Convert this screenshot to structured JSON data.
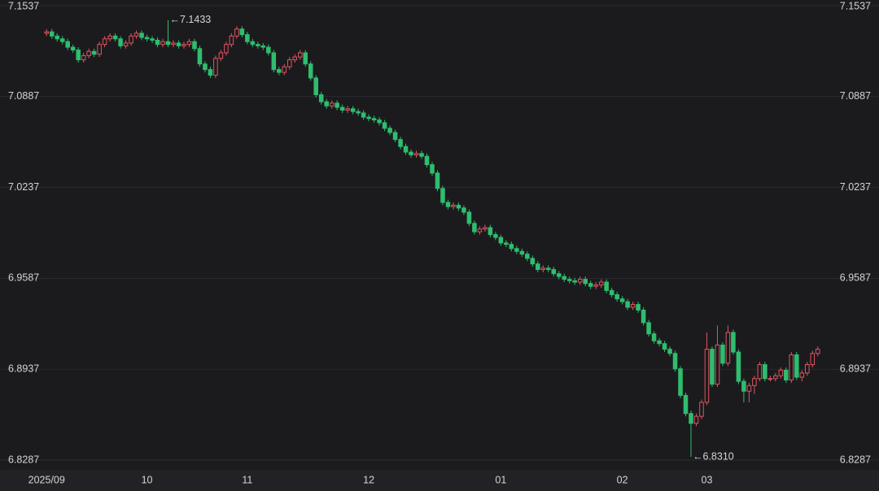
{
  "chart_data": {
    "type": "candlestick",
    "categories": [
      "2025/09",
      null,
      null,
      null,
      null,
      null,
      null,
      null,
      null,
      null,
      null,
      null,
      null,
      null,
      null,
      null,
      null,
      null,
      null,
      "10",
      null,
      null,
      null,
      null,
      null,
      null,
      null,
      null,
      null,
      null,
      null,
      null,
      null,
      null,
      null,
      null,
      null,
      null,
      "11",
      null,
      null,
      null,
      null,
      null,
      null,
      null,
      null,
      null,
      null,
      null,
      null,
      null,
      null,
      null,
      null,
      null,
      null,
      null,
      null,
      null,
      null,
      "12",
      null,
      null,
      null,
      null,
      null,
      null,
      null,
      null,
      null,
      null,
      null,
      null,
      null,
      null,
      null,
      null,
      null,
      null,
      null,
      null,
      null,
      null,
      null,
      null,
      "01",
      null,
      null,
      null,
      null,
      null,
      null,
      null,
      null,
      null,
      null,
      null,
      null,
      null,
      null,
      null,
      null,
      null,
      null,
      null,
      null,
      null,
      null,
      "02",
      null,
      null,
      null,
      null,
      null,
      null,
      null,
      null,
      null,
      null,
      null,
      null,
      null,
      null,
      null,
      "03",
      null,
      null,
      null,
      null,
      null,
      null,
      null,
      null,
      null,
      null,
      null,
      null,
      null,
      null,
      null,
      null,
      null,
      null,
      null,
      null,
      null
    ],
    "open": [
      7.134,
      7.135,
      7.132,
      7.13,
      7.128,
      7.124,
      7.122,
      7.115,
      7.118,
      7.121,
      7.119,
      7.126,
      7.13,
      7.132,
      7.13,
      7.125,
      7.127,
      7.132,
      7.134,
      7.131,
      7.13,
      7.129,
      7.126,
      7.128,
      7.126,
      7.127,
      7.125,
      7.126,
      7.128,
      7.123,
      7.112,
      7.108,
      7.104,
      7.116,
      7.12,
      7.126,
      7.132,
      7.137,
      7.133,
      7.128,
      7.126,
      7.125,
      7.124,
      7.12,
      7.108,
      7.106,
      7.11,
      7.115,
      7.117,
      7.12,
      7.112,
      7.102,
      7.09,
      7.085,
      7.082,
      7.084,
      7.081,
      7.079,
      7.08,
      7.078,
      7.077,
      7.074,
      7.073,
      7.072,
      7.07,
      7.066,
      7.063,
      7.058,
      7.053,
      7.049,
      7.047,
      7.048,
      7.046,
      7.04,
      7.034,
      7.023,
      7.013,
      7.01,
      7.011,
      7.009,
      7.006,
      6.998,
      6.992,
      6.994,
      6.995,
      6.99,
      6.988,
      6.984,
      6.983,
      6.98,
      6.978,
      6.976,
      6.973,
      6.969,
      6.965,
      6.966,
      6.965,
      6.962,
      6.96,
      6.958,
      6.957,
      6.956,
      6.958,
      6.955,
      6.953,
      6.954,
      6.956,
      6.95,
      6.947,
      6.944,
      6.942,
      6.938,
      6.94,
      6.936,
      6.927,
      6.919,
      6.914,
      6.912,
      6.908,
      6.905,
      6.894,
      6.875,
      6.862,
      6.855,
      6.86,
      6.87,
      6.908,
      6.883,
      6.911,
      6.898,
      6.92,
      6.906,
      6.885,
      6.878,
      6.882,
      6.887,
      6.897,
      6.887,
      6.887,
      6.889,
      6.893,
      6.886,
      6.904,
      6.888,
      6.891,
      6.897,
      6.905
    ],
    "high": [
      7.137,
      7.137,
      7.134,
      7.132,
      7.13,
      7.126,
      7.124,
      7.12,
      7.123,
      7.123,
      7.128,
      7.132,
      7.134,
      7.134,
      7.132,
      7.129,
      7.134,
      7.136,
      7.136,
      7.133,
      7.132,
      7.131,
      7.13,
      7.1433,
      7.129,
      7.129,
      7.128,
      7.13,
      7.13,
      7.125,
      7.114,
      7.11,
      7.118,
      7.122,
      7.128,
      7.134,
      7.139,
      7.139,
      7.135,
      7.13,
      7.128,
      7.127,
      7.126,
      7.122,
      7.11,
      7.112,
      7.117,
      7.119,
      7.122,
      7.122,
      7.114,
      7.104,
      7.092,
      7.087,
      7.086,
      7.086,
      7.083,
      7.082,
      7.082,
      7.08,
      7.079,
      7.076,
      7.075,
      7.074,
      7.072,
      7.068,
      7.065,
      7.06,
      7.055,
      7.051,
      7.05,
      7.05,
      7.048,
      7.042,
      7.036,
      7.025,
      7.015,
      7.013,
      7.013,
      7.011,
      7.008,
      7.0,
      6.996,
      6.997,
      6.997,
      6.992,
      6.99,
      6.986,
      6.985,
      6.982,
      6.98,
      6.978,
      6.975,
      6.971,
      6.968,
      6.968,
      6.967,
      6.964,
      6.962,
      6.96,
      6.959,
      6.96,
      6.96,
      6.957,
      6.956,
      6.958,
      6.958,
      6.952,
      6.949,
      6.946,
      6.944,
      6.942,
      6.942,
      6.938,
      6.929,
      6.921,
      6.916,
      6.914,
      6.91,
      6.907,
      6.896,
      6.877,
      6.864,
      6.862,
      6.872,
      6.92,
      6.91,
      6.925,
      6.913,
      6.925,
      6.922,
      6.908,
      6.887,
      6.884,
      6.889,
      6.899,
      6.899,
      6.889,
      6.891,
      6.895,
      6.895,
      6.906,
      6.906,
      6.893,
      6.899,
      6.907,
      6.91
    ],
    "low": [
      7.132,
      7.13,
      7.128,
      7.126,
      7.122,
      7.12,
      7.113,
      7.113,
      7.116,
      7.117,
      7.117,
      7.124,
      7.128,
      7.128,
      7.123,
      7.123,
      7.125,
      7.13,
      7.129,
      7.128,
      7.127,
      7.124,
      7.124,
      7.124,
      7.124,
      7.123,
      7.123,
      7.124,
      7.121,
      7.11,
      7.106,
      7.102,
      7.102,
      7.114,
      7.118,
      7.124,
      7.13,
      7.131,
      7.126,
      7.124,
      7.123,
      7.122,
      7.118,
      7.106,
      7.104,
      7.104,
      7.108,
      7.113,
      7.115,
      7.11,
      7.1,
      7.088,
      7.083,
      7.08,
      7.08,
      7.079,
      7.077,
      7.077,
      7.076,
      7.075,
      7.072,
      7.071,
      7.07,
      7.068,
      7.064,
      7.061,
      7.056,
      7.051,
      7.047,
      7.045,
      7.045,
      7.044,
      7.038,
      7.032,
      7.021,
      7.011,
      7.008,
      7.008,
      7.007,
      7.004,
      6.996,
      6.99,
      6.99,
      6.992,
      6.988,
      6.986,
      6.982,
      6.981,
      6.978,
      6.976,
      6.974,
      6.971,
      6.967,
      6.963,
      6.963,
      6.963,
      6.96,
      6.958,
      6.956,
      6.955,
      6.954,
      6.954,
      6.953,
      6.951,
      6.951,
      6.952,
      6.948,
      6.945,
      6.942,
      6.94,
      6.936,
      6.936,
      6.934,
      6.925,
      6.917,
      6.912,
      6.91,
      6.906,
      6.903,
      6.892,
      6.873,
      6.86,
      6.831,
      6.853,
      6.858,
      6.868,
      6.881,
      6.881,
      6.896,
      6.896,
      6.904,
      6.883,
      6.87,
      6.87,
      6.876,
      6.885,
      6.885,
      6.885,
      6.885,
      6.887,
      6.884,
      6.884,
      6.886,
      6.885,
      6.889,
      6.895,
      6.903
    ],
    "close": [
      7.135,
      7.132,
      7.13,
      7.128,
      7.124,
      7.122,
      7.115,
      7.118,
      7.121,
      7.119,
      7.126,
      7.13,
      7.132,
      7.13,
      7.125,
      7.127,
      7.132,
      7.134,
      7.131,
      7.13,
      7.129,
      7.126,
      7.128,
      7.126,
      7.127,
      7.125,
      7.126,
      7.128,
      7.123,
      7.112,
      7.108,
      7.104,
      7.116,
      7.12,
      7.126,
      7.132,
      7.137,
      7.133,
      7.128,
      7.126,
      7.125,
      7.124,
      7.12,
      7.108,
      7.106,
      7.11,
      7.115,
      7.117,
      7.12,
      7.112,
      7.102,
      7.09,
      7.085,
      7.082,
      7.084,
      7.081,
      7.079,
      7.08,
      7.078,
      7.077,
      7.074,
      7.073,
      7.072,
      7.07,
      7.066,
      7.063,
      7.058,
      7.053,
      7.049,
      7.047,
      7.048,
      7.046,
      7.04,
      7.034,
      7.023,
      7.013,
      7.01,
      7.011,
      7.009,
      7.006,
      6.998,
      6.992,
      6.994,
      6.995,
      6.99,
      6.988,
      6.984,
      6.983,
      6.98,
      6.978,
      6.976,
      6.973,
      6.969,
      6.965,
      6.966,
      6.965,
      6.962,
      6.96,
      6.958,
      6.957,
      6.956,
      6.958,
      6.955,
      6.953,
      6.954,
      6.956,
      6.95,
      6.947,
      6.944,
      6.942,
      6.938,
      6.94,
      6.936,
      6.927,
      6.919,
      6.914,
      6.912,
      6.908,
      6.905,
      6.894,
      6.875,
      6.862,
      6.855,
      6.86,
      6.87,
      6.908,
      6.883,
      6.911,
      6.898,
      6.92,
      6.906,
      6.885,
      6.878,
      6.882,
      6.887,
      6.897,
      6.887,
      6.887,
      6.889,
      6.893,
      6.886,
      6.904,
      6.888,
      6.891,
      6.897,
      6.905,
      6.908
    ],
    "up_color": "#e0545f",
    "down_color": "#2fbd6e",
    "ylim": [
      6.8287,
      7.1537
    ],
    "yticks": [
      6.8287,
      6.8937,
      6.9587,
      7.0237,
      7.0887,
      7.1537
    ],
    "grid": true,
    "max_annotation": "←7.1433",
    "min_annotation": "←6.8310"
  }
}
